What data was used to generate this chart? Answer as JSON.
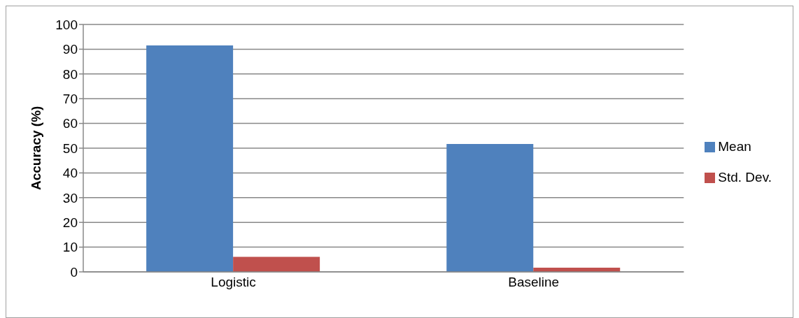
{
  "chart_data": {
    "type": "bar",
    "ylabel": "Accuracy (%)",
    "categories": [
      "Logistic",
      "Baseline"
    ],
    "series": [
      {
        "name": "Mean",
        "color": "#4f81bd",
        "values": [
          91.5,
          51.7
        ]
      },
      {
        "name": "Std. Dev.",
        "color": "#c0504d",
        "values": [
          6.1,
          1.7
        ]
      }
    ],
    "ylim": [
      0,
      100
    ],
    "yticks": [
      0,
      10,
      20,
      30,
      40,
      50,
      60,
      70,
      80,
      90,
      100
    ],
    "grid": "y",
    "legend": "right"
  }
}
